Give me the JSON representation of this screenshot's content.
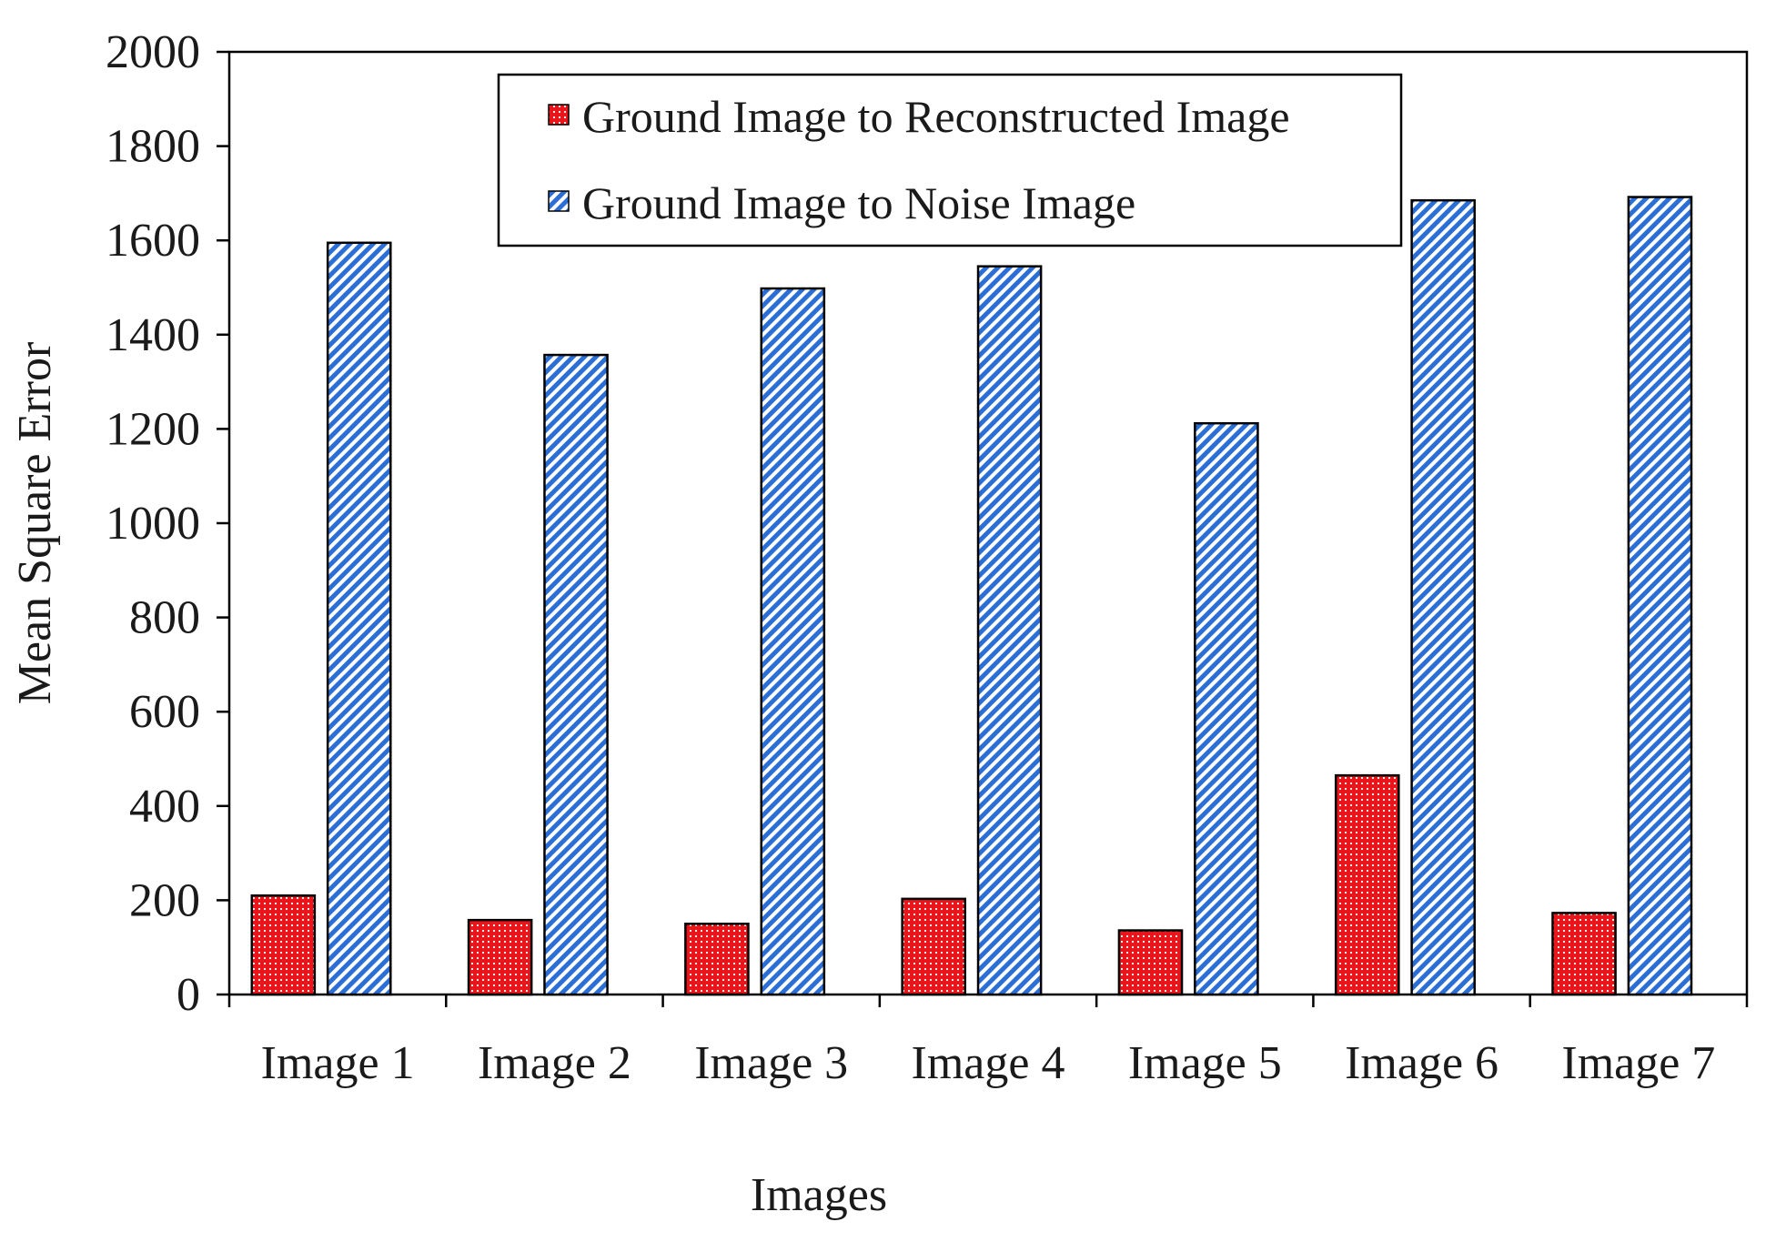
{
  "chart_data": {
    "type": "bar",
    "title": "",
    "xlabel": "Images",
    "ylabel": "Mean Square Error",
    "ylim": [
      0,
      2000
    ],
    "yticks": [
      0,
      200,
      400,
      600,
      800,
      1000,
      1200,
      1400,
      1600,
      1800,
      2000
    ],
    "categories": [
      "Image 1",
      "Image 2",
      "Image 3",
      "Image 4",
      "Image 5",
      "Image 6",
      "Image 7"
    ],
    "series": [
      {
        "name": "Ground Image to Reconstructed Image",
        "color": "#e8161b",
        "pattern": "dots",
        "values": [
          210,
          158,
          150,
          203,
          136,
          465,
          173
        ]
      },
      {
        "name": "Ground Image to Noise Image",
        "color": "#2b6fd6",
        "pattern": "diagonal-hatch",
        "values": [
          1595,
          1357,
          1498,
          1545,
          1212,
          1685,
          1692
        ]
      }
    ],
    "legend_position": "top-center",
    "grid": false
  }
}
